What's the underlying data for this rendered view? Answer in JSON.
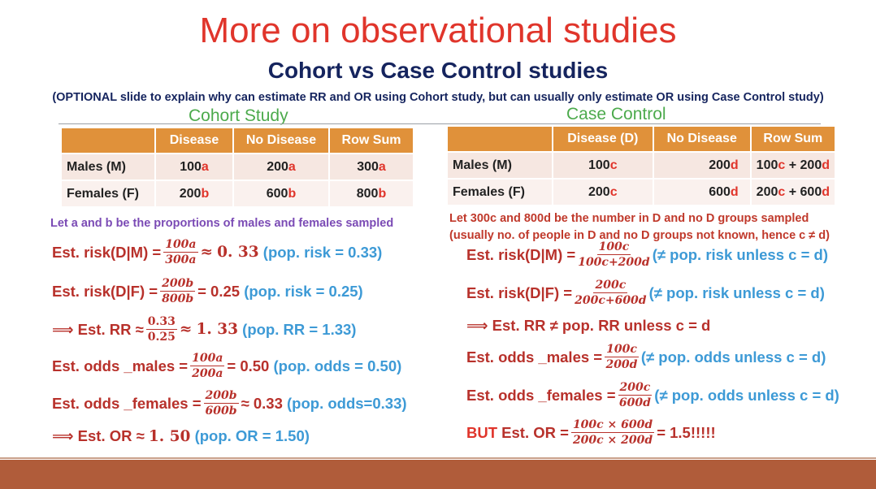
{
  "title": "More on observational studies",
  "subtitle": "Cohort vs Case Control studies",
  "note": "(OPTIONAL slide to explain why can estimate RR and OR using Cohort study, but can usually only estimate OR using Case Control study)",
  "cohort": {
    "heading": "Cohort Study",
    "headers": [
      "Disease",
      "No Disease",
      "Row Sum"
    ],
    "rows": [
      {
        "label": "Males (M)",
        "cells": [
          [
            "100",
            "a"
          ],
          [
            "200",
            "a"
          ],
          [
            "300",
            "a"
          ]
        ]
      },
      {
        "label": "Females (F)",
        "cells": [
          [
            "200",
            "b"
          ],
          [
            "600",
            "b"
          ],
          [
            "800",
            "b"
          ]
        ]
      }
    ],
    "note": "Let a and b be the proportions of males and females sampled",
    "eq1": {
      "lhs": "Est. risk(D|M) =",
      "num": "100a",
      "den": "300a",
      "mid": "≈",
      "val": "0. 33",
      "pop": "(pop. risk = 0.33)"
    },
    "eq2": {
      "lhs": "Est. risk(D|F) =",
      "num": "200b",
      "den": "800b",
      "mid": "= 0.25",
      "pop": "(pop. risk = 0.25)"
    },
    "eq3": {
      "lhs": "⟹ Est. RR ≈",
      "num": "0.33",
      "den": "0.25",
      "mid": "≈",
      "val": "1. 33",
      "pop": "(pop. RR = 1.33)"
    },
    "eq4": {
      "lhs": "Est. odds _males =",
      "num": "100a",
      "den": "200a",
      "mid": "= 0.50",
      "pop": "(pop. odds = 0.50)"
    },
    "eq5": {
      "lhs": "Est. odds _females =",
      "num": "200b",
      "den": "600b",
      "mid": "≈ 0.33",
      "pop": "(pop. odds=0.33)"
    },
    "eq6": {
      "lhs": "⟹ Est. OR ≈",
      "val": "1. 50",
      "pop": "(pop. OR = 1.50)"
    }
  },
  "casecontrol": {
    "heading": "Case Control",
    "headers": [
      "Disease (D)",
      "No Disease",
      "Row Sum"
    ],
    "rows": [
      {
        "label": "Males (M)",
        "c1": [
          "100",
          "c"
        ],
        "c2": [
          "200",
          "d"
        ],
        "c3": [
          "100",
          "c",
          " + 200",
          "d"
        ]
      },
      {
        "label": "Females (F)",
        "c1": [
          "200",
          "c"
        ],
        "c2": [
          "600",
          "d"
        ],
        "c3": [
          "200",
          "c",
          " + 600",
          "d"
        ]
      }
    ],
    "note1": "Let 300c and 800d be the number in D and no D groups sampled",
    "note2": "(usually no. of people in D and no D groups not known, hence c ≠ d)",
    "eq1": {
      "lhs": "Est. risk(D|M) =",
      "num": "100c",
      "den": "100c+200d",
      "pop": "(≠ pop. risk unless c = d)"
    },
    "eq2": {
      "lhs": "Est. risk(D|F) =",
      "num": "200c",
      "den": "200c+600d",
      "pop": "(≠ pop. risk unless c = d)"
    },
    "eq3": {
      "text": "⟹ Est. RR ≠ pop. RR unless c = d"
    },
    "eq4": {
      "lhs": "Est. odds _males =",
      "num": "100c",
      "den": "200d",
      "pop": "(≠ pop. odds unless c = d)"
    },
    "eq5": {
      "lhs": "Est. odds _females =",
      "num": "200c",
      "den": "600d",
      "pop": "(≠ pop. odds unless c = d)"
    },
    "eq6": {
      "but": "BUT",
      "lhs": "Est. OR =",
      "num": "100c × 600d",
      "den": "200c × 200d",
      "mid": "= 1.5!!!!!"
    }
  }
}
